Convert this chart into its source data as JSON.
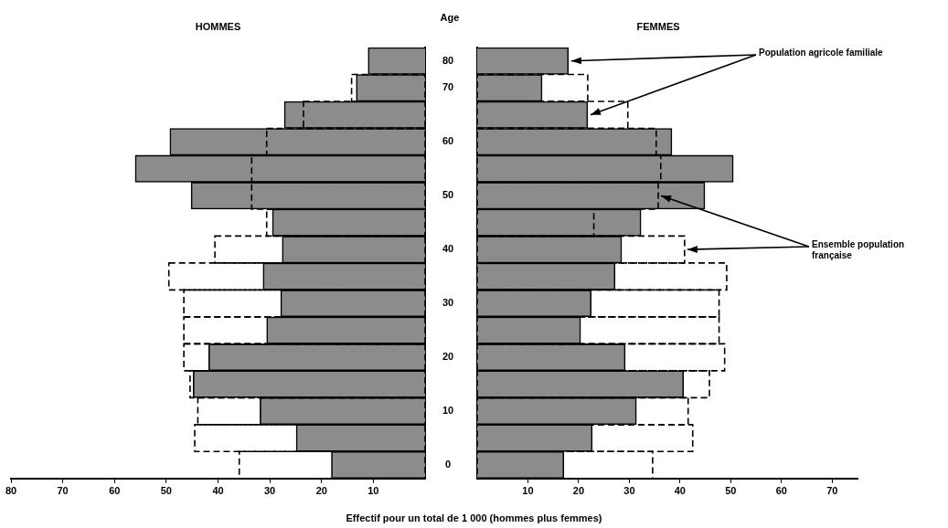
{
  "chart_data": [
    {
      "type": "bar",
      "orientation": "horizontal",
      "title": "HOMMES",
      "ylabel": "Age",
      "xlabel": "Effectif pour un total de 1 000 (hommes plus femmes)",
      "categories": [
        "80",
        "70",
        null,
        "60",
        null,
        "50",
        null,
        "40",
        null,
        "30",
        null,
        "20",
        null,
        "10",
        null,
        "0"
      ],
      "series": [
        {
          "color": "#8c8c8c",
          "values": [
            11.0,
            13.3,
            27.2,
            49.3,
            56.0,
            45.2,
            29.5,
            27.6,
            31.3,
            27.9,
            30.6,
            41.8,
            44.8,
            31.9,
            24.9,
            18.1
          ]
        },
        {
          "color": "#000000",
          "line_style": "dashed",
          "values": [
            null,
            14.2,
            23.5,
            30.6,
            33.5,
            33.5,
            30.6,
            40.6,
            49.5,
            46.6,
            46.6,
            46.6,
            45.4,
            43.9,
            44.5,
            35.9
          ]
        }
      ],
      "xlim": [
        80,
        0
      ],
      "xticks": [
        80,
        70,
        60,
        50,
        40,
        30,
        20,
        10
      ],
      "grid": false
    },
    {
      "type": "bar",
      "orientation": "horizontal",
      "title": "FEMMES",
      "tick_labels": "x",
      "categories": [
        "80",
        "70",
        null,
        "60",
        null,
        "50",
        null,
        "40",
        null,
        "30",
        null,
        "20",
        null,
        "10",
        null,
        "0"
      ],
      "series": [
        {
          "name": "Population agricole familiale",
          "color": "#8c8c8c",
          "values": [
            18.0,
            12.8,
            21.8,
            38.4,
            50.5,
            44.9,
            32.3,
            28.5,
            27.2,
            22.5,
            20.4,
            29.2,
            40.7,
            31.4,
            22.7,
            17.1
          ]
        },
        {
          "name": "Ensemble population française",
          "color": "#000000",
          "line_style": "dashed",
          "values": [
            null,
            21.8,
            29.7,
            35.3,
            36.2,
            35.7,
            23,
            40.9,
            49.2,
            47.7,
            47.7,
            48.8,
            45.8,
            41.6,
            42.5,
            34.6
          ]
        }
      ],
      "xlim": [
        0,
        75
      ],
      "xticks": [
        10,
        20,
        30,
        40,
        50,
        60,
        70
      ],
      "grid": false
    }
  ]
}
